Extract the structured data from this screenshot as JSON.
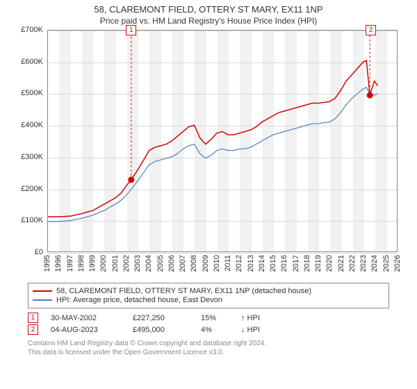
{
  "title": "58, CLAREMONT FIELD, OTTERY ST MARY, EX11 1NP",
  "subtitle": "Price paid vs. HM Land Registry's House Price Index (HPI)",
  "chart": {
    "type": "line",
    "x_domain": [
      1995,
      2026
    ],
    "y_domain": [
      0,
      700000
    ],
    "y_ticks": [
      0,
      100000,
      200000,
      300000,
      400000,
      500000,
      600000,
      700000
    ],
    "y_tick_labels": [
      "£0",
      "£100K",
      "£200K",
      "£300K",
      "£400K",
      "£500K",
      "£600K",
      "£700K"
    ],
    "x_ticks": [
      1995,
      1996,
      1997,
      1998,
      1999,
      2000,
      2001,
      2002,
      2003,
      2004,
      2005,
      2006,
      2007,
      2008,
      2009,
      2010,
      2011,
      2012,
      2013,
      2014,
      2015,
      2016,
      2017,
      2018,
      2019,
      2020,
      2021,
      2022,
      2023,
      2024,
      2025,
      2026
    ],
    "background_color": "#ffffff",
    "alt_band_color": "#f1f1f1",
    "grid_color": "#d9d9d9",
    "axis_color": "#888888",
    "label_fontsize": 11,
    "series": {
      "property": {
        "label": "58, CLAREMONT FIELD, OTTERY ST MARY, EX11 1NP (detached house)",
        "color": "#d40000",
        "line_width": 1.5,
        "points": [
          [
            1995.0,
            110000
          ],
          [
            1996.0,
            110000
          ],
          [
            1997.0,
            112000
          ],
          [
            1998.0,
            120000
          ],
          [
            1999.0,
            130000
          ],
          [
            2000.0,
            150000
          ],
          [
            2000.5,
            160000
          ],
          [
            2001.0,
            170000
          ],
          [
            2001.5,
            185000
          ],
          [
            2002.0,
            210000
          ],
          [
            2002.4,
            227250
          ],
          [
            2003.0,
            260000
          ],
          [
            2003.5,
            290000
          ],
          [
            2004.0,
            320000
          ],
          [
            2004.5,
            330000
          ],
          [
            2005.0,
            335000
          ],
          [
            2005.5,
            340000
          ],
          [
            2006.0,
            350000
          ],
          [
            2006.5,
            365000
          ],
          [
            2007.0,
            380000
          ],
          [
            2007.5,
            395000
          ],
          [
            2008.0,
            400000
          ],
          [
            2008.5,
            360000
          ],
          [
            2009.0,
            340000
          ],
          [
            2009.5,
            355000
          ],
          [
            2010.0,
            375000
          ],
          [
            2010.5,
            380000
          ],
          [
            2011.0,
            370000
          ],
          [
            2011.5,
            370000
          ],
          [
            2012.0,
            375000
          ],
          [
            2012.5,
            380000
          ],
          [
            2013.0,
            385000
          ],
          [
            2013.5,
            395000
          ],
          [
            2014.0,
            410000
          ],
          [
            2014.5,
            420000
          ],
          [
            2015.0,
            430000
          ],
          [
            2015.5,
            440000
          ],
          [
            2016.0,
            445000
          ],
          [
            2016.5,
            450000
          ],
          [
            2017.0,
            455000
          ],
          [
            2017.5,
            460000
          ],
          [
            2018.0,
            465000
          ],
          [
            2018.5,
            470000
          ],
          [
            2019.0,
            470000
          ],
          [
            2019.5,
            472000
          ],
          [
            2020.0,
            475000
          ],
          [
            2020.5,
            485000
          ],
          [
            2021.0,
            510000
          ],
          [
            2021.5,
            540000
          ],
          [
            2022.0,
            560000
          ],
          [
            2022.5,
            580000
          ],
          [
            2023.0,
            600000
          ],
          [
            2023.3,
            605000
          ],
          [
            2023.6,
            495000
          ],
          [
            2024.0,
            540000
          ],
          [
            2024.3,
            525000
          ]
        ]
      },
      "hpi": {
        "label": "HPI: Average price, detached house, East Devon",
        "color": "#4a7fc1",
        "line_width": 1.2,
        "points": [
          [
            1995.0,
            95000
          ],
          [
            1996.0,
            95000
          ],
          [
            1997.0,
            98000
          ],
          [
            1998.0,
            105000
          ],
          [
            1999.0,
            115000
          ],
          [
            2000.0,
            130000
          ],
          [
            2000.5,
            140000
          ],
          [
            2001.0,
            150000
          ],
          [
            2001.5,
            162000
          ],
          [
            2002.0,
            180000
          ],
          [
            2002.4,
            197000
          ],
          [
            2003.0,
            225000
          ],
          [
            2003.5,
            250000
          ],
          [
            2004.0,
            275000
          ],
          [
            2004.5,
            285000
          ],
          [
            2005.0,
            290000
          ],
          [
            2005.5,
            295000
          ],
          [
            2006.0,
            300000
          ],
          [
            2006.5,
            310000
          ],
          [
            2007.0,
            325000
          ],
          [
            2007.5,
            335000
          ],
          [
            2008.0,
            340000
          ],
          [
            2008.5,
            310000
          ],
          [
            2009.0,
            295000
          ],
          [
            2009.5,
            305000
          ],
          [
            2010.0,
            320000
          ],
          [
            2010.5,
            325000
          ],
          [
            2011.0,
            320000
          ],
          [
            2011.5,
            320000
          ],
          [
            2012.0,
            325000
          ],
          [
            2012.5,
            325000
          ],
          [
            2013.0,
            330000
          ],
          [
            2013.5,
            340000
          ],
          [
            2014.0,
            350000
          ],
          [
            2014.5,
            360000
          ],
          [
            2015.0,
            370000
          ],
          [
            2015.5,
            375000
          ],
          [
            2016.0,
            380000
          ],
          [
            2016.5,
            385000
          ],
          [
            2017.0,
            390000
          ],
          [
            2017.5,
            395000
          ],
          [
            2018.0,
            400000
          ],
          [
            2018.5,
            405000
          ],
          [
            2019.0,
            405000
          ],
          [
            2019.5,
            408000
          ],
          [
            2020.0,
            410000
          ],
          [
            2020.5,
            420000
          ],
          [
            2021.0,
            440000
          ],
          [
            2021.5,
            465000
          ],
          [
            2022.0,
            485000
          ],
          [
            2022.5,
            500000
          ],
          [
            2023.0,
            515000
          ],
          [
            2023.3,
            520000
          ],
          [
            2023.6,
            500000
          ],
          [
            2024.0,
            495000
          ],
          [
            2024.3,
            500000
          ]
        ]
      }
    },
    "transaction_markers": [
      {
        "id": "1",
        "x": 2002.4,
        "y": 227250,
        "callout_pos": "top"
      },
      {
        "id": "2",
        "x": 2023.6,
        "y": 495000,
        "callout_pos": "top"
      }
    ]
  },
  "legend": {
    "items": [
      {
        "key": "property"
      },
      {
        "key": "hpi"
      }
    ]
  },
  "transactions": [
    {
      "id": "1",
      "date": "30-MAY-2002",
      "price": "£227,250",
      "pct": "15%",
      "direction": "↑",
      "vs": "HPI"
    },
    {
      "id": "2",
      "date": "04-AUG-2023",
      "price": "£495,000",
      "pct": "4%",
      "direction": "↓",
      "vs": "HPI"
    }
  ],
  "attribution": {
    "line1": "Contains HM Land Registry data © Crown copyright and database right 2024.",
    "line2": "This data is licensed under the Open Government Licence v3.0."
  }
}
